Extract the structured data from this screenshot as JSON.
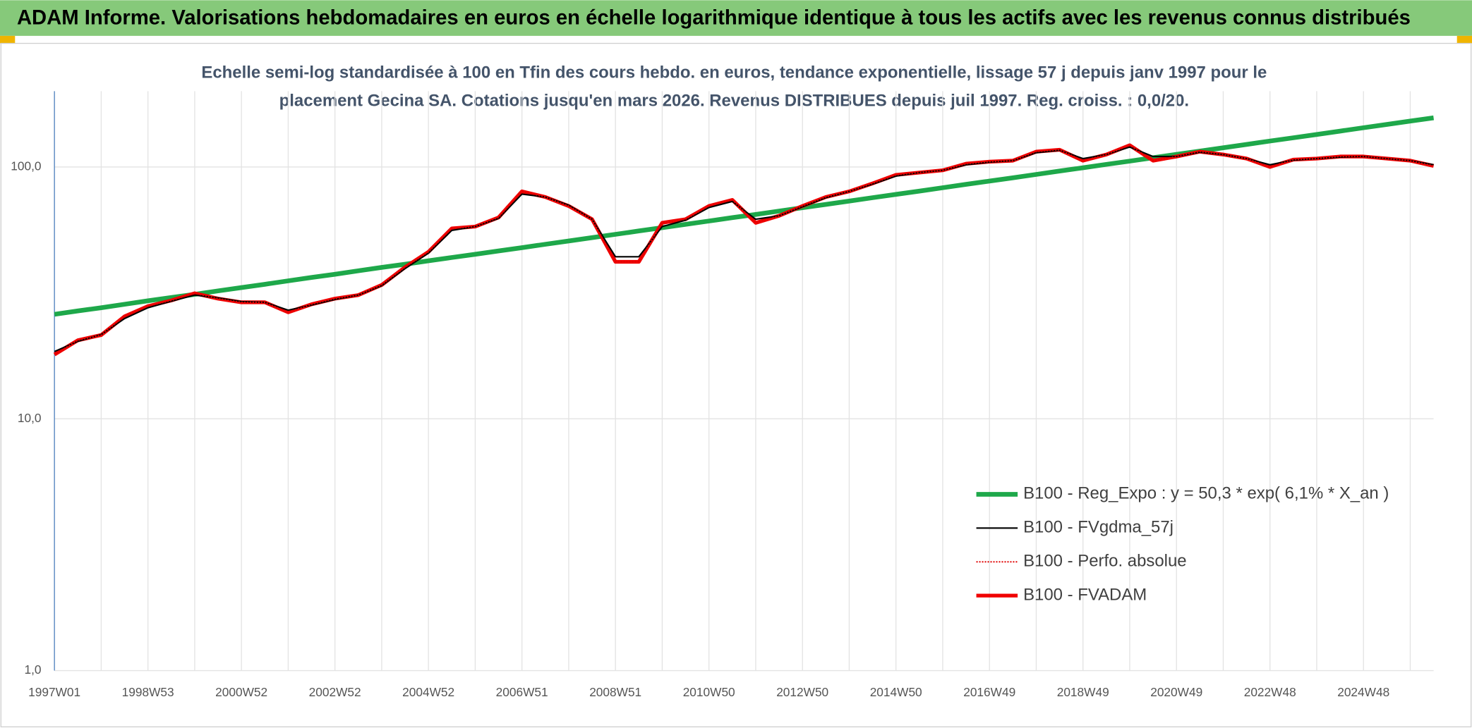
{
  "chart_data": {
    "type": "line",
    "title": "ADAM Informe. Valorisations hebdomadaires en euros en échelle logarithmique identique à tous les actifs avec les revenus connus distribués",
    "subtitle": [
      "Echelle semi-log standardisée à 100 en Tfin des cours hebdo. en euros, tendance exponentielle, lissage 57 j depuis janv 1997 pour le",
      "placement Gecina SA. Cotations jusqu'en mars 2026. Revenus DISTRIBUES depuis juil 1997. Reg. croiss. : 0,0/20."
    ],
    "categories": [
      "1997W01",
      null,
      null,
      null,
      "1998W53",
      null,
      null,
      null,
      "2000W52",
      null,
      null,
      null,
      "2002W52",
      null,
      null,
      null,
      "2004W52",
      null,
      null,
      null,
      "2006W51",
      null,
      null,
      null,
      "2008W51",
      null,
      null,
      null,
      "2010W50",
      null,
      null,
      null,
      "2012W50",
      null,
      null,
      null,
      "2014W50",
      null,
      null,
      null,
      "2016W49",
      null,
      null,
      null,
      "2018W49",
      null,
      null,
      null,
      "2020W49",
      null,
      null,
      null,
      "2022W48",
      null,
      null,
      null,
      "2024W48",
      null,
      null,
      null
    ],
    "log_scale": true,
    "ylim": [
      1,
      200
    ],
    "yticks": [
      {
        "value": 1,
        "label": "1,0"
      },
      {
        "value": 10,
        "label": "10,0"
      },
      {
        "value": 100,
        "label": "100,0"
      }
    ],
    "grid": true,
    "legend": "lower right",
    "series": [
      {
        "name": "B100 - Reg_Expo : y = 50,3 * exp( 6,1% *  X_an )",
        "color": "#1ea84a",
        "style": "solid",
        "values": [
          26.0,
          26.8,
          27.6,
          28.5,
          29.4,
          30.3,
          31.2,
          32.2,
          33.2,
          34.2,
          35.3,
          36.4,
          37.5,
          38.7,
          39.9,
          41.1,
          42.4,
          43.7,
          45.0,
          46.4,
          47.8,
          49.3,
          50.8,
          52.4,
          54.0,
          55.7,
          57.4,
          59.2,
          61.0,
          62.9,
          64.8,
          66.8,
          68.9,
          71.0,
          73.2,
          75.5,
          77.8,
          80.2,
          82.7,
          85.3,
          87.9,
          90.6,
          93.4,
          96.3,
          99.3,
          102.4,
          105.5,
          108.8,
          112.2,
          115.6,
          119.2,
          122.9,
          126.7,
          130.6,
          134.6,
          138.8,
          143.1,
          147.5,
          152.1,
          156.8
        ]
      },
      {
        "name": "B100 - FVgdma_57j",
        "color": "#000000",
        "style": "solid",
        "values": [
          18.5,
          20.3,
          21.6,
          25,
          27.6,
          29.3,
          31,
          30.2,
          29.2,
          29,
          27,
          28.3,
          29.8,
          31,
          33.8,
          39.5,
          45.5,
          56,
          58,
          62.5,
          78,
          76,
          70.5,
          62,
          44,
          44,
          58,
          61.5,
          69,
          73,
          62,
          64,
          69.5,
          75.5,
          80,
          85.5,
          92,
          95,
          97,
          102,
          104.5,
          106,
          114,
          116.5,
          108,
          112,
          120,
          110,
          110,
          114.5,
          112,
          108,
          102,
          106.5,
          108,
          109.5,
          110,
          108,
          106,
          102
        ]
      },
      {
        "name": "B100 - Perfo. absolue",
        "color": "#e00000",
        "style": "dotted",
        "values": [
          18,
          20.5,
          21.5,
          25.5,
          28,
          29.5,
          31.5,
          30,
          29,
          29,
          26.5,
          28.5,
          30,
          31,
          34,
          40,
          46,
          57,
          58,
          63,
          80,
          76,
          70,
          62,
          42,
          42,
          60,
          62,
          70,
          74,
          60,
          64,
          70,
          76,
          80,
          86,
          93,
          95,
          97,
          103,
          105,
          106,
          115,
          117,
          106,
          112,
          122,
          106,
          110,
          115,
          112,
          108,
          100,
          107,
          108,
          110,
          110,
          108,
          106,
          101
        ]
      },
      {
        "name": "B100 - FVADAM",
        "color": "#f00000",
        "style": "thick",
        "values": [
          18,
          20.5,
          21.5,
          25.5,
          28,
          29.5,
          31.5,
          30,
          29,
          29,
          26.5,
          28.5,
          30,
          31,
          34,
          40,
          46,
          57,
          58,
          63,
          80,
          76,
          70,
          62,
          42,
          42,
          60,
          62,
          70,
          74,
          60,
          64,
          70,
          76,
          80,
          86,
          93,
          95,
          97,
          103,
          105,
          106,
          115,
          117,
          106,
          112,
          122,
          106,
          110,
          115,
          112,
          108,
          100,
          107,
          108,
          110,
          110,
          108,
          106,
          101
        ]
      }
    ]
  }
}
